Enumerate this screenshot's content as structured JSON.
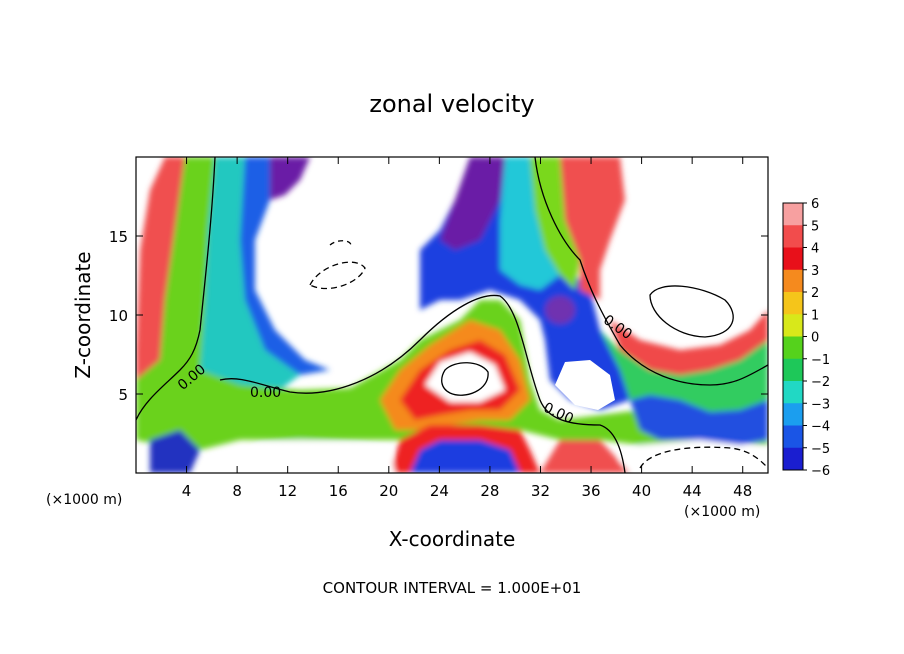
{
  "chart_data": {
    "type": "heatmap",
    "title": "zonal velocity",
    "xlabel": "X-coordinate",
    "ylabel": "Z-coordinate",
    "x_unit_note": "(×1000 m)",
    "z_unit_note": "(×1000 m)",
    "footer": "CONTOUR INTERVAL = 1.000E+01",
    "xlim": [
      0,
      50
    ],
    "ylim": [
      0,
      20
    ],
    "x_ticks": [
      4,
      8,
      12,
      16,
      20,
      24,
      28,
      32,
      36,
      40,
      44,
      48
    ],
    "y_ticks": [
      5,
      10,
      15
    ],
    "x_tick_labels": [
      "4",
      "8",
      "12",
      "16",
      "20",
      "24",
      "28",
      "32",
      "36",
      "40",
      "44",
      "48"
    ],
    "y_tick_labels": [
      "5",
      "10",
      "15"
    ],
    "colorbar": {
      "levels": [
        6,
        5,
        4,
        3,
        2,
        1,
        0,
        -1,
        -2,
        -3,
        -4,
        -5,
        -6
      ],
      "labels": [
        "6",
        "5",
        "4",
        "3",
        "2",
        "1",
        "0",
        "−1",
        "−2",
        "−3",
        "−4",
        "−5",
        "−6"
      ],
      "colors": [
        "#f7a0a0",
        "#f24c4c",
        "#e8101a",
        "#f58a1e",
        "#f5c51a",
        "#d8e81a",
        "#55d21c",
        "#1ec859",
        "#21d8c4",
        "#1b9eef",
        "#1a55e6",
        "#1a1ed0",
        "#6a1aa6"
      ]
    },
    "contour_labels": [
      "0.00",
      "0.00",
      "0.00",
      "0.00"
    ],
    "grid": false,
    "legend": "right"
  }
}
